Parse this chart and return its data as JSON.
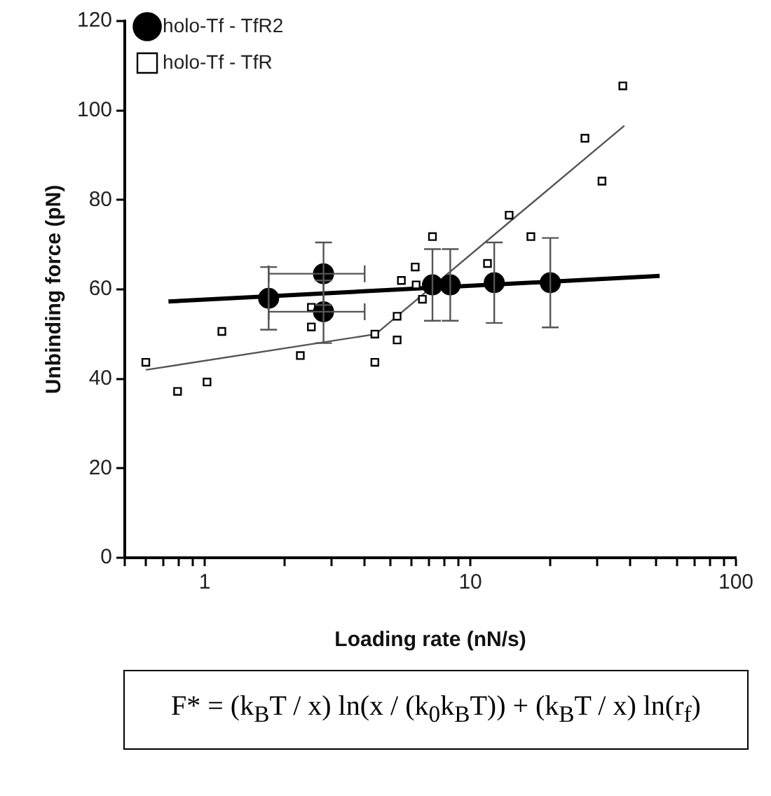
{
  "chart_data": {
    "type": "scatter",
    "xlabel": "Loading rate (nN/s)",
    "ylabel": "Unbinding force (pN)",
    "log": "x",
    "xlim": [
      0.5,
      100
    ],
    "xticks": [
      {
        "value": 0.5,
        "label": null
      },
      {
        "value": 0.6,
        "label": null
      },
      {
        "value": 0.7,
        "label": null
      },
      {
        "value": 0.8,
        "label": null
      },
      {
        "value": 0.9,
        "label": null
      },
      1,
      {
        "value": 2,
        "label": null
      },
      {
        "value": 3,
        "label": null
      },
      {
        "value": 4,
        "label": null
      },
      {
        "value": 5,
        "label": null
      },
      {
        "value": 6,
        "label": null
      },
      {
        "value": 7,
        "label": null
      },
      {
        "value": 8,
        "label": null
      },
      {
        "value": 9,
        "label": null
      },
      10,
      {
        "value": 20,
        "label": null
      },
      {
        "value": 30,
        "label": null
      },
      {
        "value": 40,
        "label": null
      },
      {
        "value": 50,
        "label": null
      },
      {
        "value": 60,
        "label": null
      },
      {
        "value": 70,
        "label": null
      },
      {
        "value": 80,
        "label": null
      },
      {
        "value": 90,
        "label": null
      },
      100
    ],
    "ylim": [
      0,
      120
    ],
    "yticks": [
      0,
      20,
      40,
      60,
      80,
      100,
      120
    ],
    "grid": false,
    "legend": "top left",
    "series": [
      {
        "name": "holo-Tf - TfR2",
        "color": "#000000",
        "marker": "circle",
        "x": [
          1.74,
          2.8,
          2.8,
          7.2,
          8.4,
          12.3,
          20
        ],
        "values": [
          58,
          63.5,
          55,
          61,
          61,
          61.5,
          61.5
        ],
        "errors": [
          7,
          7,
          7,
          8,
          8,
          9,
          10
        ],
        "xerrors": [
          null,
          [
            1.74,
            4
          ],
          [
            1.74,
            4
          ],
          null,
          null,
          null,
          null
        ]
      },
      {
        "name": "holo-Tf - TfR",
        "color": "#000000",
        "marker": "square",
        "x": [
          0.6,
          0.79,
          1.02,
          1.16,
          2.29,
          2.52,
          2.52,
          4.37,
          4.37,
          5.3,
          5.3,
          5.5,
          6.2,
          6.25,
          6.6,
          7.2,
          11.6,
          14,
          16.9,
          27,
          31.3,
          37.5
        ],
        "values": [
          43.7,
          37.2,
          39.3,
          50.6,
          45.2,
          56,
          51.6,
          50,
          43.7,
          54,
          48.7,
          62,
          65,
          61,
          57.8,
          71.8,
          65.8,
          76.6,
          71.8,
          93.8,
          84.2,
          105.5
        ]
      },
      {
        "type": "line",
        "color": "#000000",
        "marker": "none",
        "x": [
          0.73,
          51.6
        ],
        "values": [
          57.3,
          63
        ]
      },
      {
        "type": "line",
        "color": "#555555",
        "marker": "none",
        "x": [
          0.6,
          4.4,
          38
        ],
        "values": [
          42,
          50,
          96.6
        ]
      }
    ],
    "annotations": [
      "F* = (k$_{B}$T / x) ln(x / (k$_{0}$k$_{B}$T)) + (k$_{B}$T / x) ln(r$_{f}$)"
    ]
  }
}
